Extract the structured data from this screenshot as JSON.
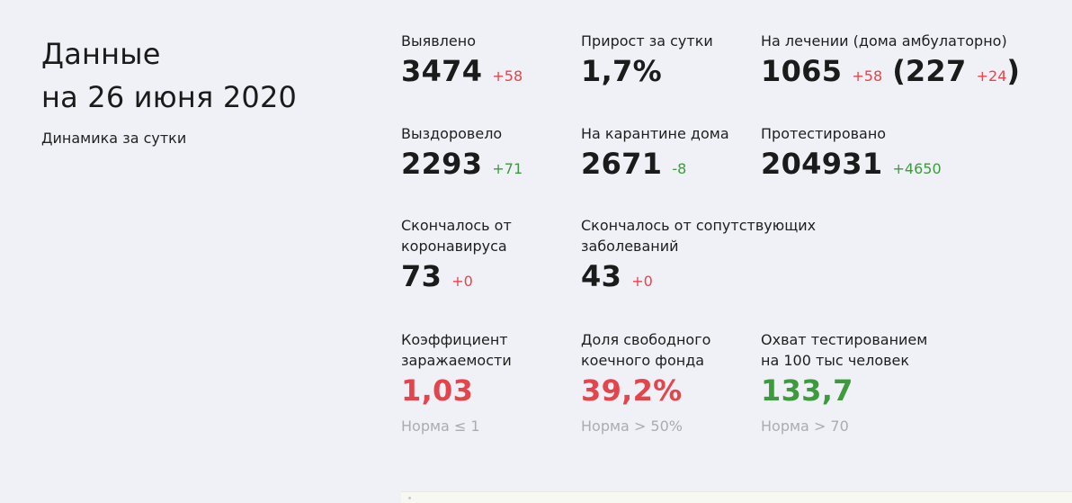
{
  "header": {
    "title_line1": "Данные",
    "title_line2": "на 26 июня 2020",
    "subtitle": "Динамика за сутки"
  },
  "stats": {
    "detected": {
      "label": "Выявлено",
      "value": "3474",
      "delta": "+58"
    },
    "growth": {
      "label": "Прирост за сутки",
      "value": "1,7%"
    },
    "treatment": {
      "label": "На лечении (дома амбулаторно)",
      "value": "1065",
      "delta": "+58",
      "paren_open": "(",
      "home_value": "227",
      "home_delta": "+24",
      "paren_close": ")"
    },
    "recovered": {
      "label": "Выздоровело",
      "value": "2293",
      "delta": "+71"
    },
    "quarantine": {
      "label": "На карантине дома",
      "value": "2671",
      "delta": "-8"
    },
    "tested": {
      "label": "Протестировано",
      "value": "204931",
      "delta": "+4650"
    },
    "died_covid": {
      "label_line1": "Скончалось от",
      "label_line2": "коронавируса",
      "value": "73",
      "delta": "+0"
    },
    "died_comorbid": {
      "label_line1": "Скончалось от сопутствующих",
      "label_line2": "заболеваний",
      "value": "43",
      "delta": "+0"
    },
    "infection_rate": {
      "label_line1": "Коэффициент",
      "label_line2": "заражаемости",
      "value": "1,03",
      "norm": "Норма ≤ 1"
    },
    "free_beds": {
      "label_line1": "Доля свободного",
      "label_line2": "коечного фонда",
      "value": "39,2%",
      "norm": "Норма > 50%"
    },
    "testing_coverage": {
      "label_line1": "Охват тестированием",
      "label_line2": "на 100 тыс человек",
      "value": "133,7",
      "norm": "Норма > 70"
    }
  },
  "colors": {
    "background": "#f0f1f6",
    "positive_delta": "#e4454c",
    "negative_delta": "#3d9a3d",
    "norm_text": "#a9acb4"
  }
}
